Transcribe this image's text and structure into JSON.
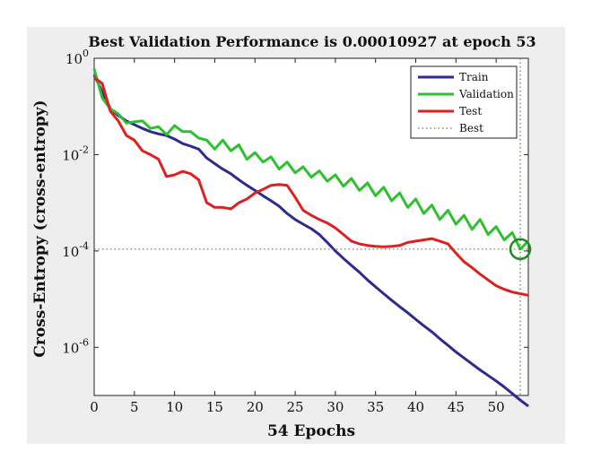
{
  "chart_data": {
    "type": "line",
    "title": "Best Validation Performance is 0.00010927 at epoch 53",
    "xlabel": "54 Epochs",
    "ylabel": "Cross-Entropy (cross-entropy)",
    "xlim": [
      0,
      54
    ],
    "ylim": [
      1e-07,
      1
    ],
    "yscale": "log",
    "x_ticks": [
      "0",
      "5",
      "10",
      "15",
      "20",
      "25",
      "30",
      "35",
      "40",
      "45",
      "50"
    ],
    "y_ticks": [
      {
        "base": "10",
        "exp": "0",
        "value": 1
      },
      {
        "base": "10",
        "exp": "-2",
        "value": 0.01
      },
      {
        "base": "10",
        "exp": "-4",
        "value": 0.0001
      },
      {
        "base": "10",
        "exp": "-6",
        "value": 1e-06
      }
    ],
    "legend": {
      "position": "top-right"
    },
    "best": {
      "name": "Best",
      "epoch": 53,
      "value": 0.00010927,
      "color": "#4a8a3a"
    },
    "series": [
      {
        "name": "Train",
        "color": "#2e2a8e",
        "x": [
          0,
          1,
          2,
          3,
          4,
          5,
          6,
          7,
          8,
          9,
          10,
          11,
          12,
          13,
          14,
          15,
          16,
          17,
          18,
          19,
          20,
          21,
          22,
          23,
          24,
          25,
          26,
          27,
          28,
          29,
          30,
          31,
          32,
          33,
          34,
          35,
          36,
          37,
          38,
          39,
          40,
          41,
          42,
          43,
          44,
          45,
          46,
          47,
          48,
          49,
          50,
          51,
          52,
          53,
          54
        ],
        "y": [
          0.45,
          0.2,
          0.09,
          0.065,
          0.05,
          0.042,
          0.035,
          0.03,
          0.027,
          0.025,
          0.021,
          0.017,
          0.015,
          0.013,
          0.0085,
          0.0065,
          0.005,
          0.004,
          0.003,
          0.0023,
          0.0018,
          0.0014,
          0.0011,
          0.00085,
          0.0006,
          0.00045,
          0.00036,
          0.00029,
          0.00022,
          0.00015,
          0.0001,
          7e-05,
          5e-05,
          3.6e-05,
          2.5e-05,
          1.8e-05,
          1.3e-05,
          9.5e-06,
          7e-06,
          5.2e-06,
          3.8e-06,
          2.8e-06,
          2.1e-06,
          1.5e-06,
          1.1e-06,
          8e-07,
          6e-07,
          4.5e-07,
          3.4e-07,
          2.6e-07,
          2e-07,
          1.5e-07,
          1.1e-07,
          8e-08,
          6e-08
        ]
      },
      {
        "name": "Validation",
        "color": "#2ec02e",
        "x": [
          0,
          1,
          2,
          3,
          4,
          5,
          6,
          7,
          8,
          9,
          10,
          11,
          12,
          13,
          14,
          15,
          16,
          17,
          18,
          19,
          20,
          21,
          22,
          23,
          24,
          25,
          26,
          27,
          28,
          29,
          30,
          31,
          32,
          33,
          34,
          35,
          36,
          37,
          38,
          39,
          40,
          41,
          42,
          43,
          44,
          45,
          46,
          47,
          48,
          49,
          50,
          51,
          52,
          53,
          54
        ],
        "y": [
          0.6,
          0.15,
          0.09,
          0.07,
          0.045,
          0.048,
          0.05,
          0.035,
          0.038,
          0.026,
          0.04,
          0.03,
          0.03,
          0.022,
          0.02,
          0.013,
          0.02,
          0.012,
          0.016,
          0.008,
          0.011,
          0.007,
          0.009,
          0.005,
          0.007,
          0.0042,
          0.0056,
          0.0034,
          0.0046,
          0.0028,
          0.0038,
          0.0022,
          0.0032,
          0.0018,
          0.0026,
          0.0014,
          0.0021,
          0.0011,
          0.0016,
          0.0008,
          0.0012,
          0.0006,
          0.0009,
          0.00045,
          0.0007,
          0.00036,
          0.00055,
          0.00028,
          0.00045,
          0.00022,
          0.00032,
          0.00017,
          0.00024,
          0.00010927,
          0.00016
        ]
      },
      {
        "name": "Test",
        "color": "#e02020",
        "x": [
          0,
          1,
          2,
          3,
          4,
          5,
          6,
          7,
          8,
          9,
          10,
          11,
          12,
          13,
          14,
          15,
          16,
          17,
          18,
          19,
          20,
          21,
          22,
          23,
          24,
          25,
          26,
          27,
          28,
          29,
          30,
          31,
          32,
          33,
          34,
          35,
          36,
          37,
          38,
          39,
          40,
          41,
          42,
          43,
          44,
          45,
          46,
          47,
          48,
          49,
          50,
          51,
          52,
          53,
          54
        ],
        "y": [
          0.4,
          0.3,
          0.08,
          0.05,
          0.025,
          0.02,
          0.012,
          0.01,
          0.008,
          0.0035,
          0.0038,
          0.0045,
          0.004,
          0.003,
          0.001,
          0.0008,
          0.0008,
          0.00075,
          0.001,
          0.0012,
          0.0016,
          0.0019,
          0.0023,
          0.0024,
          0.0023,
          0.0013,
          0.0007,
          0.00055,
          0.00045,
          0.00038,
          0.0003,
          0.00022,
          0.00016,
          0.00014,
          0.00013,
          0.000125,
          0.000122,
          0.000125,
          0.00013,
          0.00015,
          0.00016,
          0.00017,
          0.00018,
          0.00016,
          0.00014,
          9e-05,
          6e-05,
          4.5e-05,
          3.3e-05,
          2.5e-05,
          1.9e-05,
          1.6e-05,
          1.4e-05,
          1.3e-05,
          1.2e-05
        ]
      }
    ]
  }
}
